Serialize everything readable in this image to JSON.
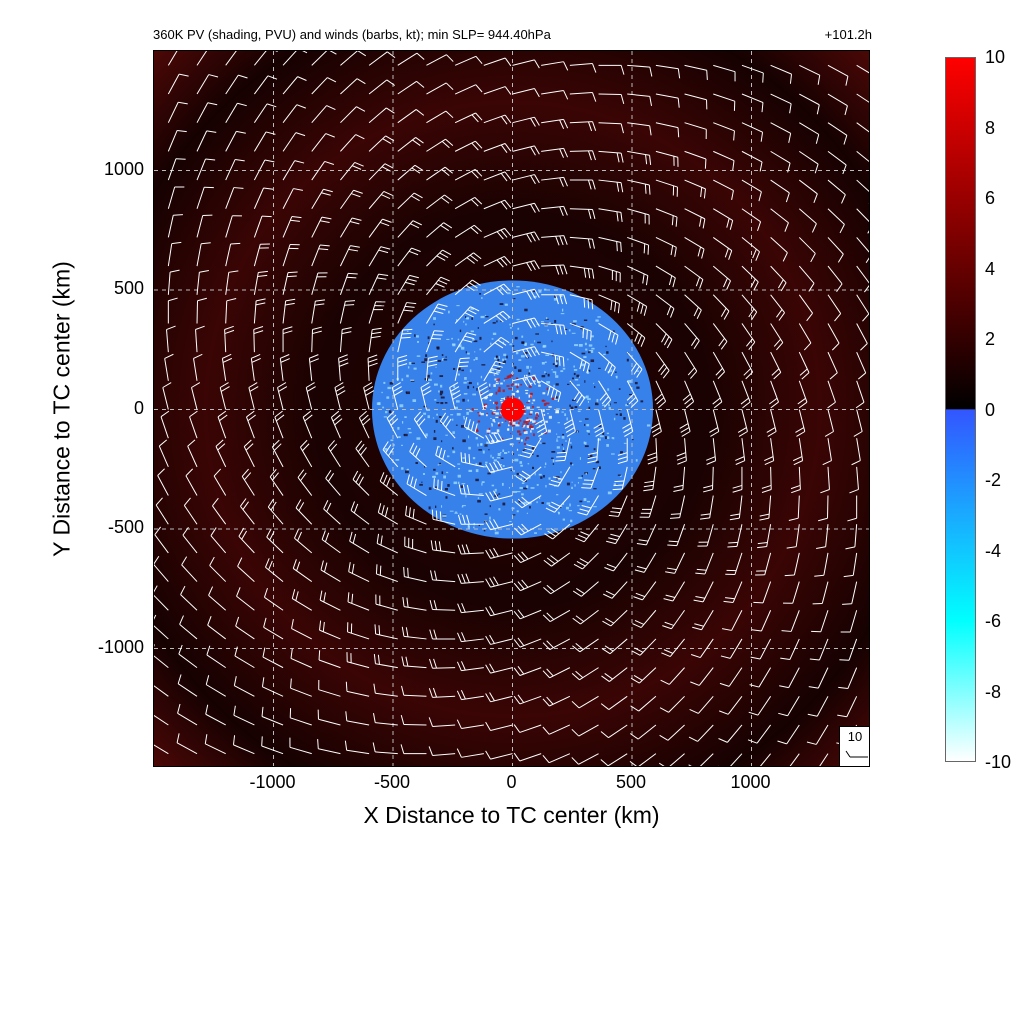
{
  "chart_data": {
    "type": "heatmap",
    "title": "360K PV (shading, PVU) and winds (barbs, kt); min SLP= 944.40hPa",
    "subtitle": "+101.2h",
    "xlabel": "X Distance to TC center (km)",
    "ylabel": "Y Distance to TC center (km)",
    "xlim": [
      -1500,
      1500
    ],
    "ylim": [
      -1500,
      1500
    ],
    "x_ticks": [
      -1000,
      -500,
      0,
      500,
      1000
    ],
    "y_ticks": [
      -1000,
      -500,
      0,
      500,
      1000
    ],
    "x_tick_labels": [
      "-1000",
      "-500",
      "0",
      "500",
      "1000"
    ],
    "y_tick_labels": [
      "1000",
      "500",
      "0",
      "-500",
      "-1000"
    ],
    "grid": true,
    "colorbar": {
      "range": [
        -10,
        10
      ],
      "ticks": [
        "10",
        "8",
        "6",
        "4",
        "2",
        "0",
        "-2",
        "-4",
        "-6",
        "-8",
        "-10"
      ],
      "stops": [
        {
          "value": -10,
          "color": "#ffffff"
        },
        {
          "value": -6,
          "color": "#00ffff"
        },
        {
          "value": 0,
          "color": "#3355ff"
        },
        {
          "value": 0.01,
          "color": "#000000"
        },
        {
          "value": 10,
          "color": "#ff0000"
        }
      ]
    },
    "field_description": {
      "background_pv": 2.5,
      "core_radius_km": 50,
      "core_pv": 10,
      "negative_ring_radius_km": [
        150,
        600
      ],
      "negative_pv": -2
    },
    "wind_reference": {
      "label": "10",
      "speed_kt": 10
    }
  },
  "colors": {
    "positive_max": "#ff0000",
    "background_field": "#4a0806",
    "negative": "#3a8cff",
    "barb": "#ffffff",
    "grid": "#bbbbbb"
  }
}
